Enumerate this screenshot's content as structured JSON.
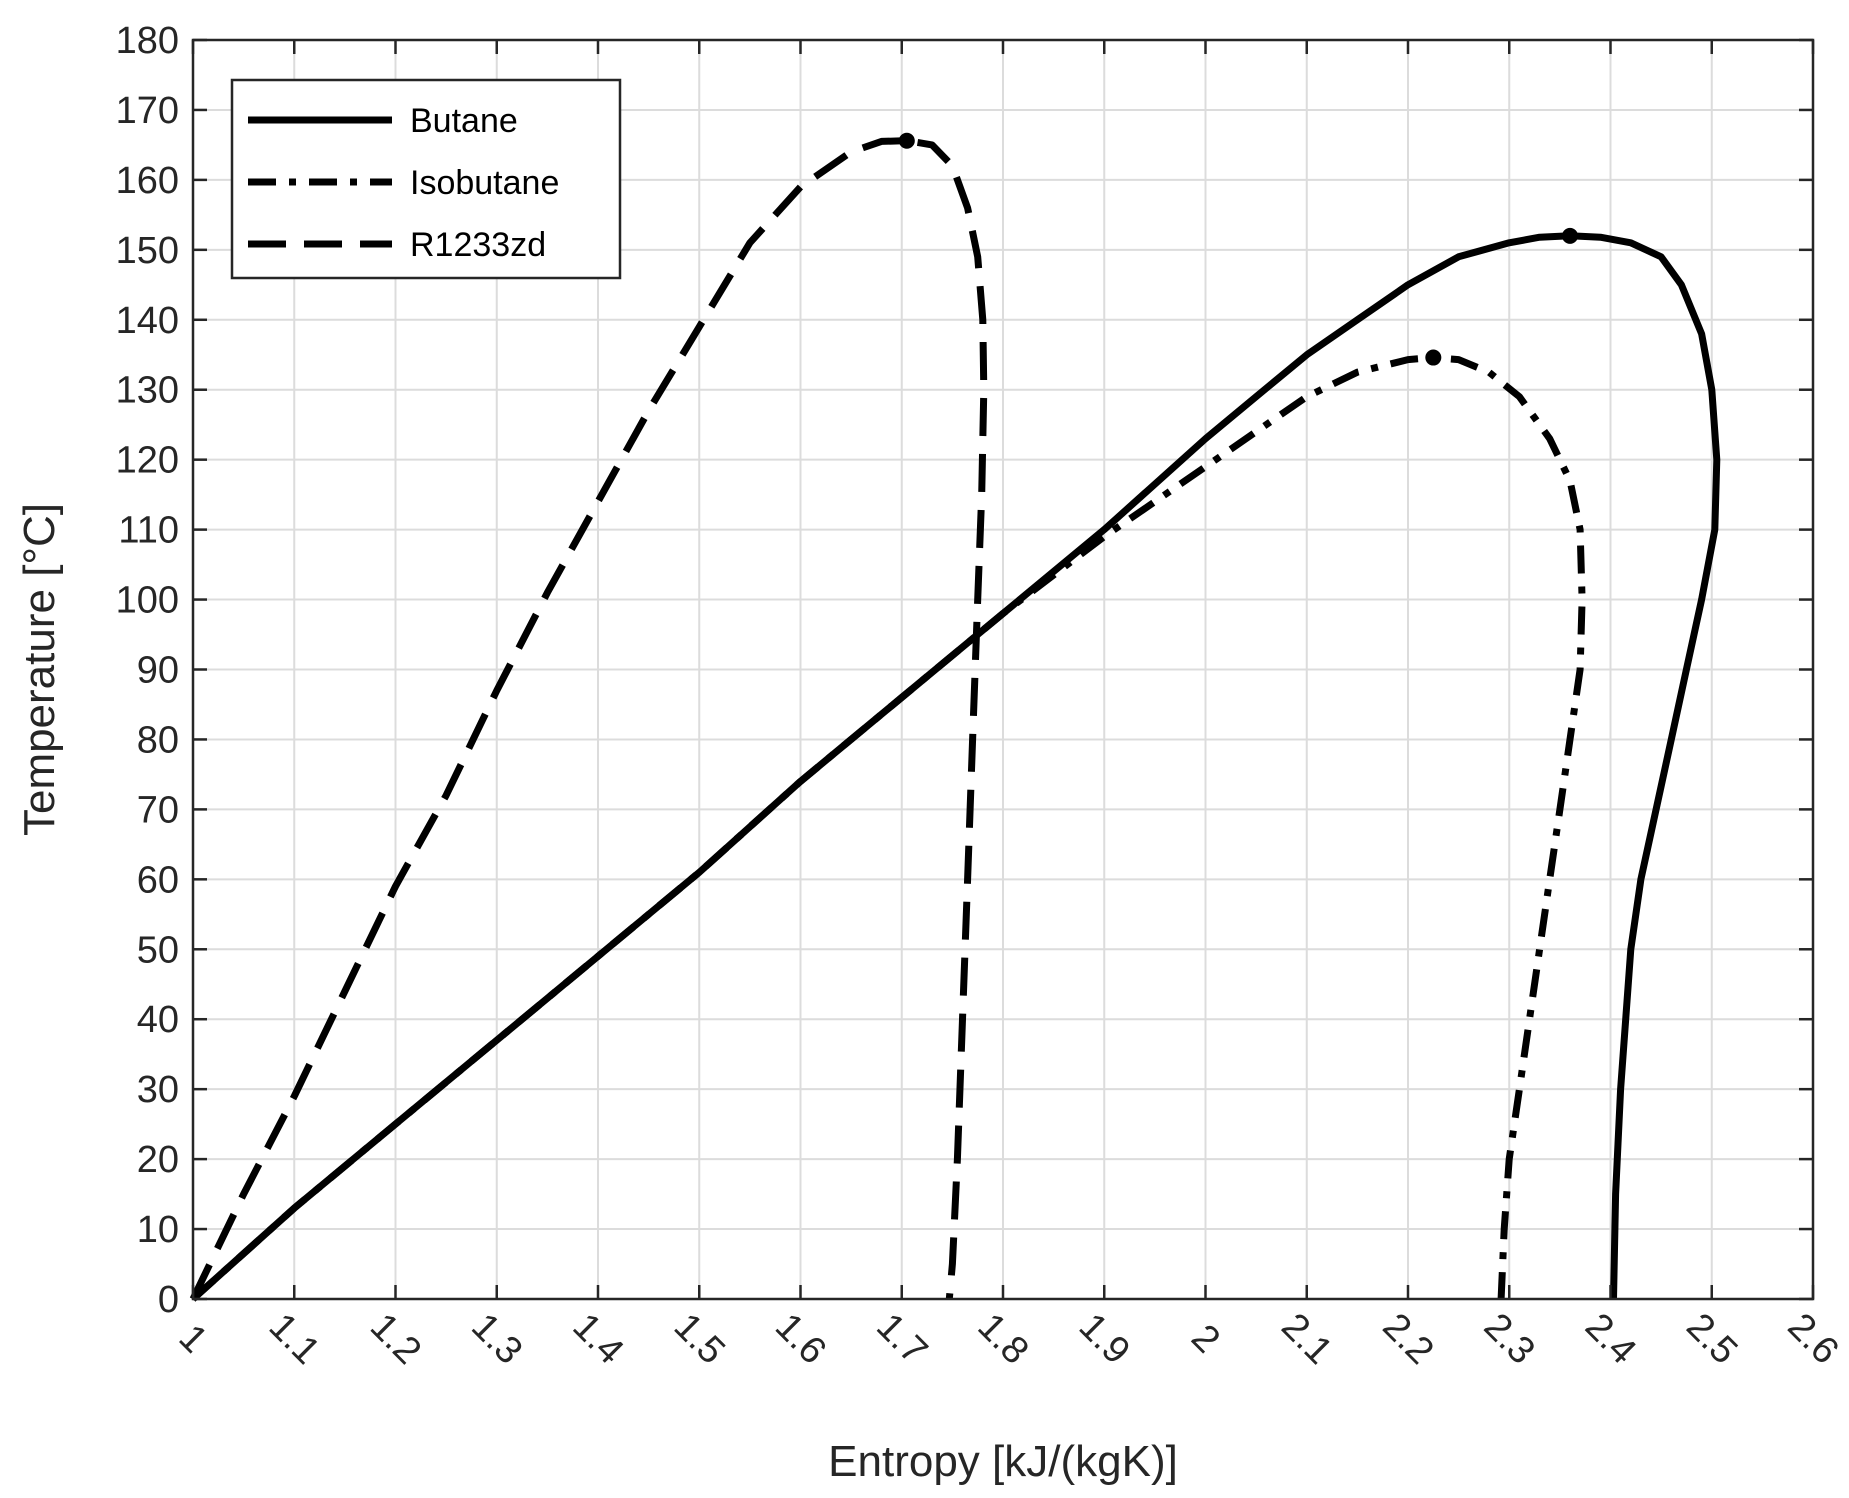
{
  "chart_data": {
    "type": "line",
    "title": "",
    "xlabel": "Entropy [kJ/(kgK)]",
    "ylabel": "Temperature [°C]",
    "xlim": [
      1,
      2.6
    ],
    "ylim": [
      0,
      180
    ],
    "xticks": [
      1,
      1.1,
      1.2,
      1.3,
      1.4,
      1.5,
      1.6,
      1.7,
      1.8,
      1.9,
      2,
      2.1,
      2.2,
      2.3,
      2.4,
      2.5,
      2.6
    ],
    "xtick_labels": [
      "1",
      "1.1",
      "1.2",
      "1.3",
      "1.4",
      "1.5",
      "1.6",
      "1.7",
      "1.8",
      "1.9",
      "2",
      "2.1",
      "2.2",
      "2.3",
      "2.4",
      "2.5",
      "2.6"
    ],
    "yticks": [
      0,
      10,
      20,
      30,
      40,
      50,
      60,
      70,
      80,
      90,
      100,
      110,
      120,
      130,
      140,
      150,
      160,
      170,
      180
    ],
    "ytick_labels": [
      "0",
      "10",
      "20",
      "30",
      "40",
      "50",
      "60",
      "70",
      "80",
      "90",
      "100",
      "110",
      "120",
      "130",
      "140",
      "150",
      "160",
      "170",
      "180"
    ],
    "grid": true,
    "legend_position": "top-left",
    "series": [
      {
        "name": "Butane",
        "style": "solid",
        "x": [
          1.0,
          1.1,
          1.2,
          1.3,
          1.4,
          1.5,
          1.6,
          1.7,
          1.8,
          1.9,
          2.0,
          2.05,
          2.1,
          2.15,
          2.2,
          2.25,
          2.3,
          2.33,
          2.36,
          2.39,
          2.42,
          2.45,
          2.47,
          2.49,
          2.5,
          2.505,
          2.503,
          2.49,
          2.475,
          2.46,
          2.445,
          2.43,
          2.42,
          2.41,
          2.405,
          2.403
        ],
        "y": [
          0,
          13,
          25,
          37,
          49,
          61,
          74,
          86,
          98,
          110,
          123,
          129,
          135,
          140,
          145,
          149,
          151,
          151.8,
          152,
          151.8,
          151,
          149,
          145,
          138,
          130,
          120,
          110,
          100,
          90,
          80,
          70,
          60,
          50,
          30,
          15,
          0
        ]
      },
      {
        "name": "Isobutane",
        "style": "dashdot",
        "x": [
          1.0,
          1.1,
          1.2,
          1.3,
          1.4,
          1.5,
          1.6,
          1.7,
          1.8,
          1.9,
          2.0,
          2.05,
          2.1,
          2.15,
          2.2,
          2.225,
          2.25,
          2.28,
          2.31,
          2.34,
          2.36,
          2.37,
          2.372,
          2.37,
          2.36,
          2.35,
          2.34,
          2.33,
          2.32,
          2.31,
          2.3,
          2.295,
          2.292
        ],
        "y": [
          0,
          13,
          25,
          37,
          49,
          61,
          74,
          86,
          98,
          109,
          119,
          124,
          129,
          132.5,
          134.3,
          134.6,
          134.3,
          132.5,
          129,
          123,
          117,
          110,
          100,
          90,
          80,
          70,
          60,
          50,
          40,
          30,
          20,
          10,
          0
        ]
      },
      {
        "name": "R1233zd",
        "style": "dashed",
        "x": [
          1.0,
          1.05,
          1.1,
          1.15,
          1.2,
          1.25,
          1.3,
          1.35,
          1.4,
          1.45,
          1.5,
          1.55,
          1.6,
          1.65,
          1.68,
          1.705,
          1.73,
          1.75,
          1.765,
          1.775,
          1.78,
          1.781,
          1.779,
          1.775,
          1.77,
          1.765,
          1.76,
          1.755,
          1.75,
          1.747
        ],
        "y": [
          0,
          15,
          29,
          44,
          59,
          72,
          87,
          101,
          114,
          127,
          139,
          151,
          159,
          164,
          165.5,
          165.6,
          165,
          162,
          156,
          149,
          140,
          130,
          115,
          100,
          80,
          60,
          40,
          20,
          5,
          0
        ]
      }
    ],
    "critical_points": [
      {
        "name": "Butane",
        "x": 2.36,
        "y": 152
      },
      {
        "name": "Isobutane",
        "x": 2.225,
        "y": 134.6
      },
      {
        "name": "R1233zd",
        "x": 1.705,
        "y": 165.6
      }
    ]
  }
}
